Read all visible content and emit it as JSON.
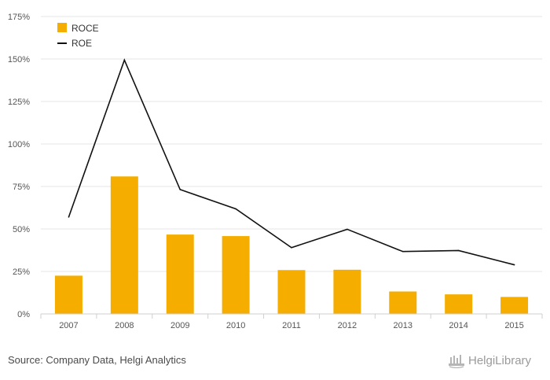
{
  "chart_data": {
    "type": "bar",
    "categories": [
      "2007",
      "2008",
      "2009",
      "2010",
      "2011",
      "2012",
      "2013",
      "2014",
      "2015"
    ],
    "series": [
      {
        "name": "ROCE",
        "kind": "bar",
        "color": "#F5AE00",
        "values": [
          22.5,
          80.9,
          46.7,
          45.8,
          25.8,
          26.0,
          13.2,
          11.5,
          10.0
        ]
      },
      {
        "name": "ROE",
        "kind": "line",
        "color": "#111111",
        "values": [
          57.0,
          149.4,
          73.2,
          61.8,
          39.0,
          49.8,
          36.7,
          37.3,
          28.9
        ]
      }
    ],
    "yticks": [
      "0%",
      "25%",
      "50%",
      "75%",
      "100%",
      "125%",
      "150%",
      "175%"
    ],
    "ylim": [
      0,
      175
    ],
    "grid": true,
    "legend_position": "top-left"
  },
  "footer": {
    "source": "Source: Company Data, Helgi Analytics",
    "logo_text": "HelgiLibrary",
    "logo_icon": "helgi-library-logo-icon"
  }
}
